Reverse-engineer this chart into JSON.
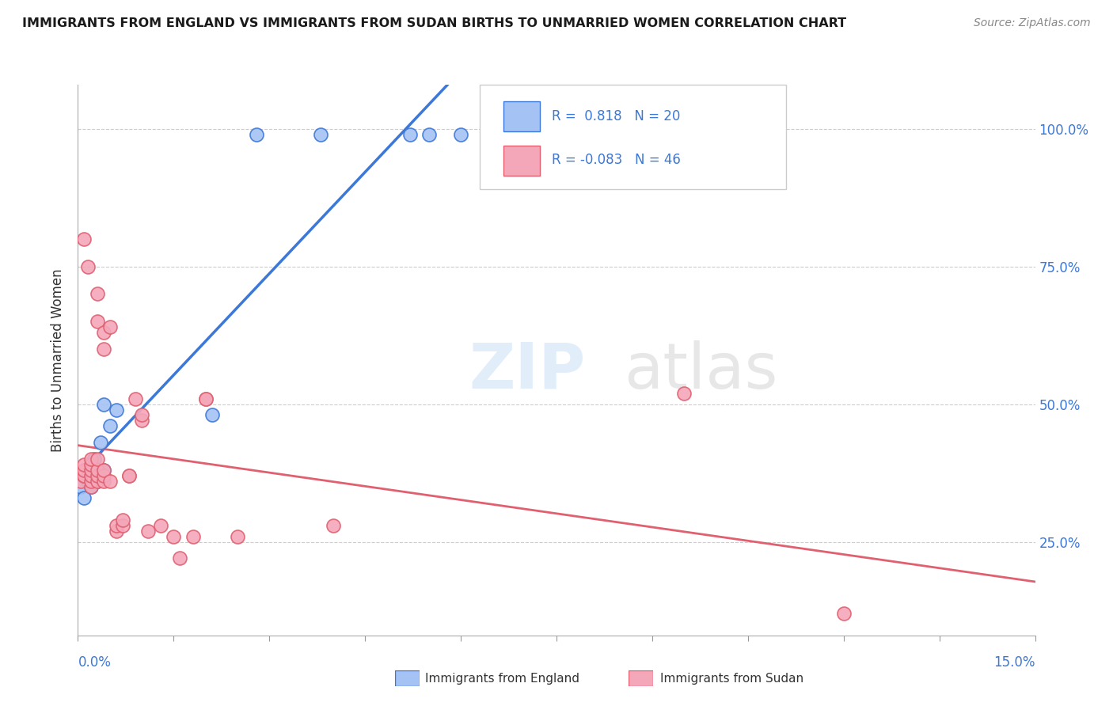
{
  "title": "IMMIGRANTS FROM ENGLAND VS IMMIGRANTS FROM SUDAN BIRTHS TO UNMARRIED WOMEN CORRELATION CHART",
  "source": "Source: ZipAtlas.com",
  "ylabel": "Births to Unmarried Women",
  "ytick_values": [
    0.25,
    0.5,
    0.75,
    1.0
  ],
  "xmin": 0.0,
  "xmax": 0.15,
  "ymin": 0.08,
  "ymax": 1.08,
  "color_england": "#a4c2f4",
  "color_england_dark": "#3c78d8",
  "color_sudan": "#f4a7b9",
  "color_sudan_dark": "#e06070",
  "color_line_england": "#3c78d8",
  "color_line_sudan": "#e06070",
  "color_ytick": "#3c78d8",
  "color_xtick": "#3c78d8",
  "england_x": [
    0.0005,
    0.001,
    0.001,
    0.0015,
    0.002,
    0.002,
    0.0025,
    0.003,
    0.003,
    0.0035,
    0.004,
    0.004,
    0.005,
    0.006,
    0.021,
    0.028,
    0.038,
    0.052,
    0.055,
    0.06
  ],
  "england_y": [
    0.35,
    0.33,
    0.37,
    0.36,
    0.35,
    0.38,
    0.4,
    0.36,
    0.38,
    0.43,
    0.5,
    0.38,
    0.46,
    0.49,
    0.48,
    0.99,
    0.99,
    0.99,
    0.99,
    0.99
  ],
  "sudan_x": [
    0.0005,
    0.001,
    0.001,
    0.001,
    0.001,
    0.001,
    0.0015,
    0.002,
    0.002,
    0.002,
    0.002,
    0.002,
    0.002,
    0.003,
    0.003,
    0.003,
    0.003,
    0.003,
    0.003,
    0.004,
    0.004,
    0.004,
    0.004,
    0.004,
    0.005,
    0.005,
    0.006,
    0.006,
    0.007,
    0.007,
    0.008,
    0.008,
    0.009,
    0.01,
    0.01,
    0.011,
    0.013,
    0.015,
    0.016,
    0.018,
    0.02,
    0.02,
    0.025,
    0.04,
    0.12,
    0.095
  ],
  "sudan_y": [
    0.36,
    0.37,
    0.37,
    0.38,
    0.39,
    0.8,
    0.75,
    0.35,
    0.36,
    0.37,
    0.38,
    0.39,
    0.4,
    0.36,
    0.37,
    0.38,
    0.4,
    0.65,
    0.7,
    0.36,
    0.37,
    0.38,
    0.6,
    0.63,
    0.36,
    0.64,
    0.27,
    0.28,
    0.28,
    0.29,
    0.37,
    0.37,
    0.51,
    0.47,
    0.48,
    0.27,
    0.28,
    0.26,
    0.22,
    0.26,
    0.51,
    0.51,
    0.26,
    0.28,
    0.12,
    0.52
  ]
}
